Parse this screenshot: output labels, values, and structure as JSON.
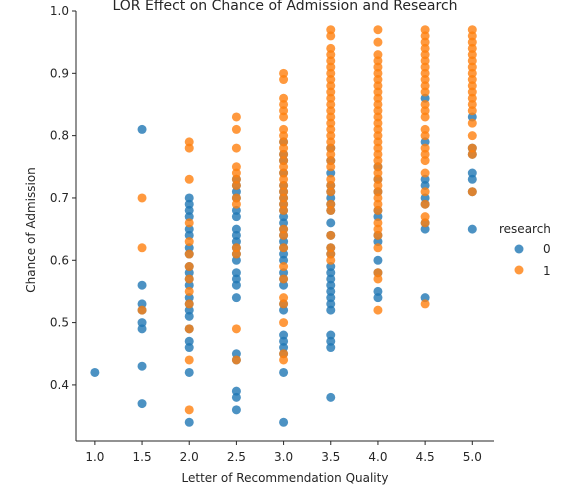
{
  "chart_data": {
    "type": "scatter",
    "title": "LOR Effect on Chance of Admission and Research",
    "xlabel": "Letter of Recommendation Quality",
    "ylabel": "Chance of Admission",
    "xlim": [
      0.8,
      5.23
    ],
    "ylim": [
      0.31,
      1.0
    ],
    "xticks": [
      "1.0",
      "1.5",
      "2.0",
      "2.5",
      "3.0",
      "3.5",
      "4.0",
      "4.5",
      "5.0"
    ],
    "yticks": [
      "0.4",
      "0.5",
      "0.6",
      "0.7",
      "0.8",
      "0.9",
      "1.0"
    ],
    "grid": false,
    "legend": {
      "title": "research",
      "position": "right"
    },
    "series": [
      {
        "name": "0",
        "color": "#1f77b4",
        "points": [
          [
            1.0,
            0.42
          ],
          [
            1.5,
            0.81
          ],
          [
            1.5,
            0.56
          ],
          [
            1.5,
            0.53
          ],
          [
            1.5,
            0.52
          ],
          [
            1.5,
            0.5
          ],
          [
            1.5,
            0.49
          ],
          [
            1.5,
            0.43
          ],
          [
            1.5,
            0.37
          ],
          [
            2.0,
            0.7
          ],
          [
            2.0,
            0.69
          ],
          [
            2.0,
            0.68
          ],
          [
            2.0,
            0.67
          ],
          [
            2.0,
            0.65
          ],
          [
            2.0,
            0.64
          ],
          [
            2.0,
            0.62
          ],
          [
            2.0,
            0.61
          ],
          [
            2.0,
            0.59
          ],
          [
            2.0,
            0.58
          ],
          [
            2.0,
            0.57
          ],
          [
            2.0,
            0.56
          ],
          [
            2.0,
            0.54
          ],
          [
            2.0,
            0.53
          ],
          [
            2.0,
            0.52
          ],
          [
            2.0,
            0.51
          ],
          [
            2.0,
            0.49
          ],
          [
            2.0,
            0.47
          ],
          [
            2.0,
            0.46
          ],
          [
            2.0,
            0.42
          ],
          [
            2.0,
            0.34
          ],
          [
            2.5,
            0.73
          ],
          [
            2.5,
            0.72
          ],
          [
            2.5,
            0.71
          ],
          [
            2.5,
            0.7
          ],
          [
            2.5,
            0.68
          ],
          [
            2.5,
            0.67
          ],
          [
            2.5,
            0.65
          ],
          [
            2.5,
            0.64
          ],
          [
            2.5,
            0.63
          ],
          [
            2.5,
            0.62
          ],
          [
            2.5,
            0.61
          ],
          [
            2.5,
            0.6
          ],
          [
            2.5,
            0.58
          ],
          [
            2.5,
            0.57
          ],
          [
            2.5,
            0.56
          ],
          [
            2.5,
            0.54
          ],
          [
            2.5,
            0.45
          ],
          [
            2.5,
            0.44
          ],
          [
            2.5,
            0.39
          ],
          [
            2.5,
            0.38
          ],
          [
            2.5,
            0.36
          ],
          [
            3.0,
            0.79
          ],
          [
            3.0,
            0.77
          ],
          [
            3.0,
            0.76
          ],
          [
            3.0,
            0.74
          ],
          [
            3.0,
            0.72
          ],
          [
            3.0,
            0.71
          ],
          [
            3.0,
            0.7
          ],
          [
            3.0,
            0.69
          ],
          [
            3.0,
            0.68
          ],
          [
            3.0,
            0.67
          ],
          [
            3.0,
            0.66
          ],
          [
            3.0,
            0.65
          ],
          [
            3.0,
            0.64
          ],
          [
            3.0,
            0.63
          ],
          [
            3.0,
            0.62
          ],
          [
            3.0,
            0.61
          ],
          [
            3.0,
            0.6
          ],
          [
            3.0,
            0.58
          ],
          [
            3.0,
            0.57
          ],
          [
            3.0,
            0.56
          ],
          [
            3.0,
            0.53
          ],
          [
            3.0,
            0.52
          ],
          [
            3.0,
            0.48
          ],
          [
            3.0,
            0.47
          ],
          [
            3.0,
            0.46
          ],
          [
            3.0,
            0.45
          ],
          [
            3.0,
            0.42
          ],
          [
            3.0,
            0.34
          ],
          [
            3.5,
            0.78
          ],
          [
            3.5,
            0.76
          ],
          [
            3.5,
            0.74
          ],
          [
            3.5,
            0.72
          ],
          [
            3.5,
            0.71
          ],
          [
            3.5,
            0.7
          ],
          [
            3.5,
            0.69
          ],
          [
            3.5,
            0.68
          ],
          [
            3.5,
            0.66
          ],
          [
            3.5,
            0.64
          ],
          [
            3.5,
            0.62
          ],
          [
            3.5,
            0.61
          ],
          [
            3.5,
            0.59
          ],
          [
            3.5,
            0.58
          ],
          [
            3.5,
            0.57
          ],
          [
            3.5,
            0.56
          ],
          [
            3.5,
            0.55
          ],
          [
            3.5,
            0.54
          ],
          [
            3.5,
            0.53
          ],
          [
            3.5,
            0.52
          ],
          [
            3.5,
            0.48
          ],
          [
            3.5,
            0.47
          ],
          [
            3.5,
            0.46
          ],
          [
            3.5,
            0.38
          ],
          [
            4.0,
            0.75
          ],
          [
            4.0,
            0.73
          ],
          [
            4.0,
            0.71
          ],
          [
            4.0,
            0.68
          ],
          [
            4.0,
            0.67
          ],
          [
            4.0,
            0.64
          ],
          [
            4.0,
            0.63
          ],
          [
            4.0,
            0.6
          ],
          [
            4.0,
            0.58
          ],
          [
            4.0,
            0.55
          ],
          [
            4.0,
            0.54
          ],
          [
            4.5,
            0.86
          ],
          [
            4.5,
            0.79
          ],
          [
            4.5,
            0.73
          ],
          [
            4.5,
            0.72
          ],
          [
            4.5,
            0.7
          ],
          [
            4.5,
            0.69
          ],
          [
            4.5,
            0.66
          ],
          [
            4.5,
            0.65
          ],
          [
            4.5,
            0.54
          ],
          [
            5.0,
            0.83
          ],
          [
            5.0,
            0.78
          ],
          [
            5.0,
            0.77
          ],
          [
            5.0,
            0.74
          ],
          [
            5.0,
            0.73
          ],
          [
            5.0,
            0.71
          ],
          [
            5.0,
            0.65
          ]
        ]
      },
      {
        "name": "1",
        "color": "#ff7f0e",
        "points": [
          [
            1.5,
            0.7
          ],
          [
            1.5,
            0.62
          ],
          [
            1.5,
            0.52
          ],
          [
            2.0,
            0.79
          ],
          [
            2.0,
            0.78
          ],
          [
            2.0,
            0.73
          ],
          [
            2.0,
            0.66
          ],
          [
            2.0,
            0.63
          ],
          [
            2.0,
            0.61
          ],
          [
            2.0,
            0.59
          ],
          [
            2.0,
            0.57
          ],
          [
            2.0,
            0.55
          ],
          [
            2.0,
            0.53
          ],
          [
            2.0,
            0.49
          ],
          [
            2.0,
            0.44
          ],
          [
            2.0,
            0.36
          ],
          [
            2.5,
            0.83
          ],
          [
            2.5,
            0.81
          ],
          [
            2.5,
            0.78
          ],
          [
            2.5,
            0.75
          ],
          [
            2.5,
            0.74
          ],
          [
            2.5,
            0.73
          ],
          [
            2.5,
            0.72
          ],
          [
            2.5,
            0.7
          ],
          [
            2.5,
            0.69
          ],
          [
            2.5,
            0.62
          ],
          [
            2.5,
            0.61
          ],
          [
            2.5,
            0.49
          ],
          [
            2.5,
            0.44
          ],
          [
            3.0,
            0.9
          ],
          [
            3.0,
            0.89
          ],
          [
            3.0,
            0.86
          ],
          [
            3.0,
            0.85
          ],
          [
            3.0,
            0.84
          ],
          [
            3.0,
            0.83
          ],
          [
            3.0,
            0.81
          ],
          [
            3.0,
            0.8
          ],
          [
            3.0,
            0.79
          ],
          [
            3.0,
            0.78
          ],
          [
            3.0,
            0.77
          ],
          [
            3.0,
            0.76
          ],
          [
            3.0,
            0.75
          ],
          [
            3.0,
            0.74
          ],
          [
            3.0,
            0.73
          ],
          [
            3.0,
            0.72
          ],
          [
            3.0,
            0.71
          ],
          [
            3.0,
            0.7
          ],
          [
            3.0,
            0.69
          ],
          [
            3.0,
            0.68
          ],
          [
            3.0,
            0.65
          ],
          [
            3.0,
            0.64
          ],
          [
            3.0,
            0.62
          ],
          [
            3.0,
            0.59
          ],
          [
            3.0,
            0.57
          ],
          [
            3.0,
            0.54
          ],
          [
            3.0,
            0.53
          ],
          [
            3.0,
            0.5
          ],
          [
            3.0,
            0.45
          ],
          [
            3.0,
            0.44
          ],
          [
            3.5,
            0.97
          ],
          [
            3.5,
            0.96
          ],
          [
            3.5,
            0.94
          ],
          [
            3.5,
            0.93
          ],
          [
            3.5,
            0.92
          ],
          [
            3.5,
            0.91
          ],
          [
            3.5,
            0.9
          ],
          [
            3.5,
            0.89
          ],
          [
            3.5,
            0.88
          ],
          [
            3.5,
            0.87
          ],
          [
            3.5,
            0.86
          ],
          [
            3.5,
            0.85
          ],
          [
            3.5,
            0.84
          ],
          [
            3.5,
            0.83
          ],
          [
            3.5,
            0.82
          ],
          [
            3.5,
            0.81
          ],
          [
            3.5,
            0.8
          ],
          [
            3.5,
            0.79
          ],
          [
            3.5,
            0.78
          ],
          [
            3.5,
            0.77
          ],
          [
            3.5,
            0.76
          ],
          [
            3.5,
            0.75
          ],
          [
            3.5,
            0.73
          ],
          [
            3.5,
            0.72
          ],
          [
            3.5,
            0.71
          ],
          [
            3.5,
            0.69
          ],
          [
            3.5,
            0.68
          ],
          [
            3.5,
            0.64
          ],
          [
            3.5,
            0.62
          ],
          [
            3.5,
            0.61
          ],
          [
            3.5,
            0.6
          ],
          [
            4.0,
            0.97
          ],
          [
            4.0,
            0.95
          ],
          [
            4.0,
            0.93
          ],
          [
            4.0,
            0.92
          ],
          [
            4.0,
            0.91
          ],
          [
            4.0,
            0.9
          ],
          [
            4.0,
            0.89
          ],
          [
            4.0,
            0.88
          ],
          [
            4.0,
            0.87
          ],
          [
            4.0,
            0.86
          ],
          [
            4.0,
            0.85
          ],
          [
            4.0,
            0.84
          ],
          [
            4.0,
            0.83
          ],
          [
            4.0,
            0.82
          ],
          [
            4.0,
            0.81
          ],
          [
            4.0,
            0.8
          ],
          [
            4.0,
            0.79
          ],
          [
            4.0,
            0.78
          ],
          [
            4.0,
            0.77
          ],
          [
            4.0,
            0.76
          ],
          [
            4.0,
            0.75
          ],
          [
            4.0,
            0.74
          ],
          [
            4.0,
            0.73
          ],
          [
            4.0,
            0.72
          ],
          [
            4.0,
            0.71
          ],
          [
            4.0,
            0.7
          ],
          [
            4.0,
            0.69
          ],
          [
            4.0,
            0.68
          ],
          [
            4.0,
            0.66
          ],
          [
            4.0,
            0.65
          ],
          [
            4.0,
            0.64
          ],
          [
            4.0,
            0.62
          ],
          [
            4.0,
            0.58
          ],
          [
            4.0,
            0.57
          ],
          [
            4.0,
            0.52
          ],
          [
            4.5,
            0.97
          ],
          [
            4.5,
            0.96
          ],
          [
            4.5,
            0.95
          ],
          [
            4.5,
            0.94
          ],
          [
            4.5,
            0.93
          ],
          [
            4.5,
            0.92
          ],
          [
            4.5,
            0.91
          ],
          [
            4.5,
            0.9
          ],
          [
            4.5,
            0.89
          ],
          [
            4.5,
            0.88
          ],
          [
            4.5,
            0.87
          ],
          [
            4.5,
            0.85
          ],
          [
            4.5,
            0.84
          ],
          [
            4.5,
            0.83
          ],
          [
            4.5,
            0.81
          ],
          [
            4.5,
            0.8
          ],
          [
            4.5,
            0.78
          ],
          [
            4.5,
            0.77
          ],
          [
            4.5,
            0.76
          ],
          [
            4.5,
            0.74
          ],
          [
            4.5,
            0.71
          ],
          [
            4.5,
            0.69
          ],
          [
            4.5,
            0.67
          ],
          [
            4.5,
            0.66
          ],
          [
            4.5,
            0.53
          ],
          [
            5.0,
            0.97
          ],
          [
            5.0,
            0.96
          ],
          [
            5.0,
            0.95
          ],
          [
            5.0,
            0.94
          ],
          [
            5.0,
            0.93
          ],
          [
            5.0,
            0.92
          ],
          [
            5.0,
            0.91
          ],
          [
            5.0,
            0.9
          ],
          [
            5.0,
            0.89
          ],
          [
            5.0,
            0.88
          ],
          [
            5.0,
            0.87
          ],
          [
            5.0,
            0.86
          ],
          [
            5.0,
            0.85
          ],
          [
            5.0,
            0.84
          ],
          [
            5.0,
            0.82
          ],
          [
            5.0,
            0.8
          ],
          [
            5.0,
            0.78
          ],
          [
            5.0,
            0.77
          ],
          [
            5.0,
            0.71
          ]
        ]
      }
    ]
  }
}
